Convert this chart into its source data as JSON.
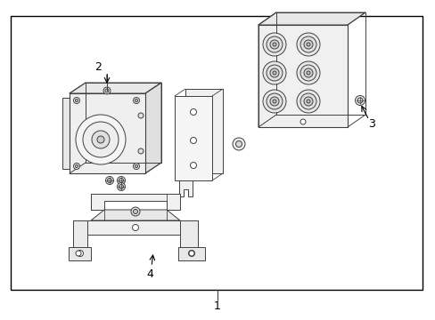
{
  "background_color": "#ffffff",
  "border_color": "#000000",
  "line_color": "#404040",
  "text_color": "#000000",
  "label_1": "1",
  "label_2": "2",
  "label_3": "3",
  "label_4": "4",
  "fig_width": 4.89,
  "fig_height": 3.6,
  "dpi": 100
}
